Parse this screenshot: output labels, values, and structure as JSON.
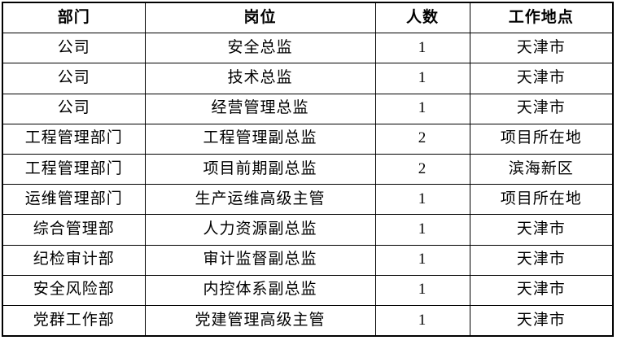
{
  "table": {
    "columns": [
      "部门",
      "岗位",
      "人数",
      "工作地点"
    ],
    "rows": [
      [
        "公司",
        "安全总监",
        "1",
        "天津市"
      ],
      [
        "公司",
        "技术总监",
        "1",
        "天津市"
      ],
      [
        "公司",
        "经营管理总监",
        "1",
        "天津市"
      ],
      [
        "工程管理部门",
        "工程管理副总监",
        "2",
        "项目所在地"
      ],
      [
        "工程管理部门",
        "项目前期副总监",
        "2",
        "滨海新区"
      ],
      [
        "运维管理部门",
        "生产运维高级主管",
        "1",
        "项目所在地"
      ],
      [
        "综合管理部",
        "人力资源副总监",
        "1",
        "天津市"
      ],
      [
        "纪检审计部",
        "审计监督副总监",
        "1",
        "天津市"
      ],
      [
        "安全风险部",
        "内控体系副总监",
        "1",
        "天津市"
      ],
      [
        "党群工作部",
        "党建管理高级主管",
        "1",
        "天津市"
      ]
    ],
    "colors": {
      "border": "#000000",
      "text": "#000000",
      "background": "#ffffff"
    }
  }
}
